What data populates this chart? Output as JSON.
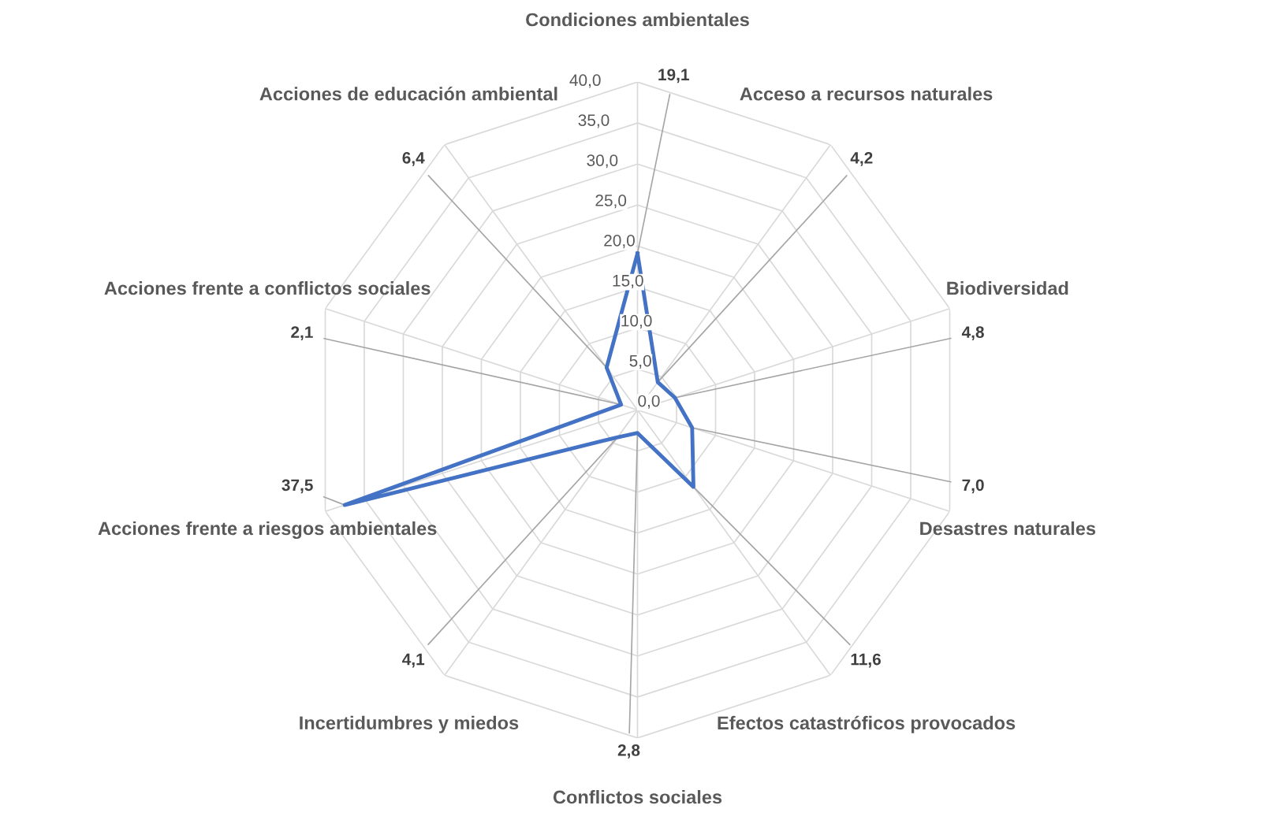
{
  "chart_data": {
    "type": "radar",
    "categories": [
      "Condiciones ambientales",
      "Acceso a recursos naturales",
      "Biodiversidad",
      "Desastres naturales",
      "Efectos catastróficos provocados",
      "Conflictos sociales",
      "Incertidumbres y miedos",
      "Acciones frente a riesgos ambientales",
      "Acciones frente a conflictos sociales",
      "Acciones de educación ambiental"
    ],
    "series": [
      {
        "color": "#4472c4",
        "values": [
          19.1,
          4.2,
          4.8,
          7.0,
          11.6,
          2.8,
          4.1,
          37.5,
          2.1,
          6.4
        ],
        "value_labels": [
          "19,1",
          "4,2",
          "4,8",
          "7,0",
          "11,6",
          "2,8",
          "4,1",
          "37,5",
          "2,1",
          "6,4"
        ]
      }
    ],
    "ylim": [
      0,
      40
    ],
    "yticks": [
      {
        "value": 0,
        "label": "0,0"
      },
      {
        "value": 5,
        "label": "5,0"
      },
      {
        "value": 10,
        "label": "10,0"
      },
      {
        "value": 15,
        "label": "15,0"
      },
      {
        "value": 20,
        "label": "20,0"
      },
      {
        "value": 25,
        "label": "25,0"
      },
      {
        "value": 30,
        "label": "30,0"
      },
      {
        "value": 35,
        "label": "35,0"
      },
      {
        "value": 40,
        "label": "40,0"
      }
    ],
    "grid": true,
    "marker": "none",
    "line_style": "solid",
    "legend": false
  }
}
